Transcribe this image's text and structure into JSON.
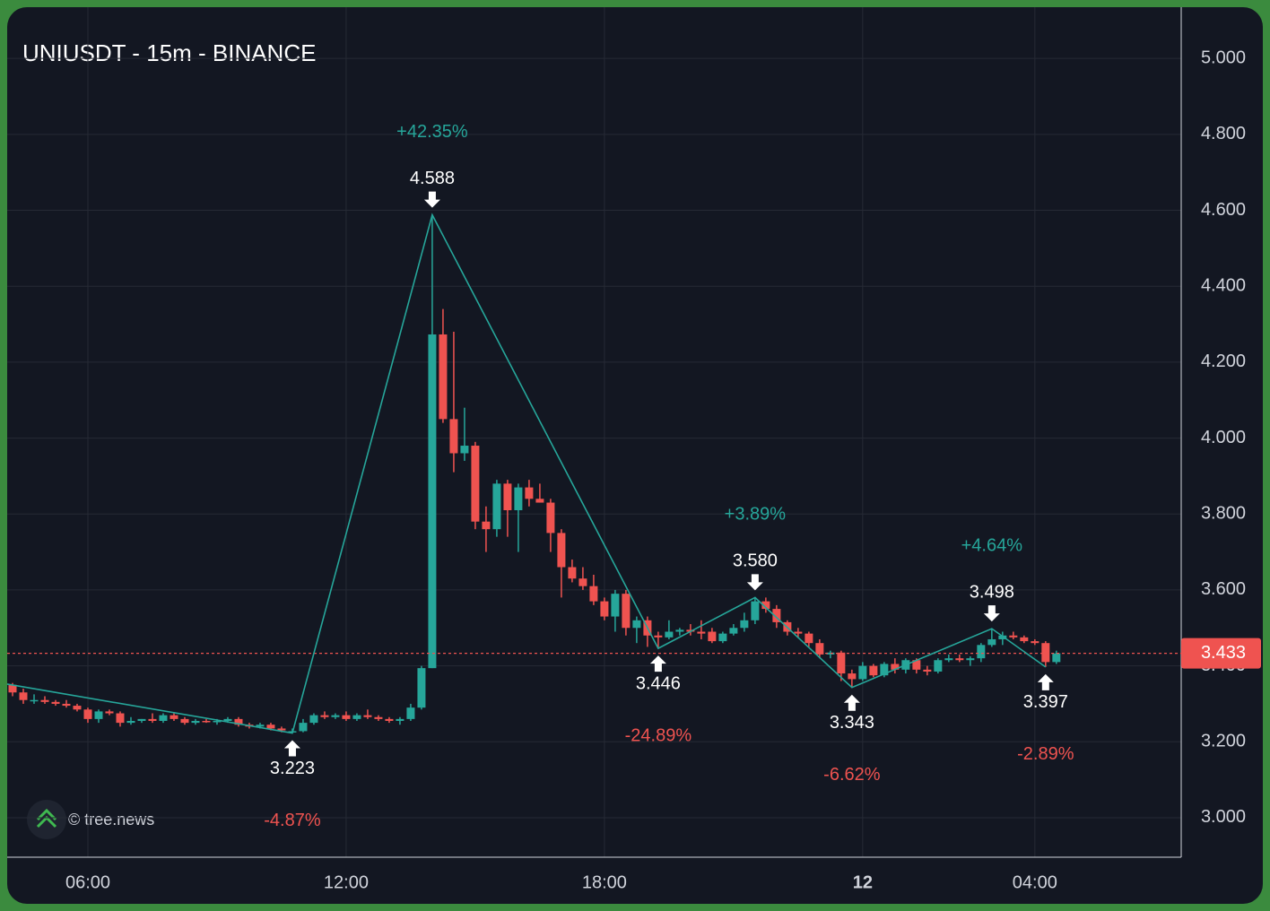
{
  "chart_data": {
    "type": "candlestick",
    "title": "UNIUSDT - 15m - BINANCE",
    "watermark": "© tree.news",
    "up_color": "#26a69a",
    "down_color": "#ef5350",
    "line_color": "#26a69a",
    "grid": true,
    "xlim": [
      4.125,
      31.4
    ],
    "ylim": [
      2.896,
      5.135
    ],
    "xticks": [
      {
        "value": 6,
        "label": "06:00"
      },
      {
        "value": 12,
        "label": "12:00"
      },
      {
        "value": 18,
        "label": "18:00"
      },
      {
        "value": 24,
        "label": "12"
      },
      {
        "value": 28,
        "label": "04:00"
      }
    ],
    "yticks": [
      {
        "value": 3.0,
        "label": "3.000"
      },
      {
        "value": 3.2,
        "label": "3.200"
      },
      {
        "value": 3.4,
        "label": "3.400"
      },
      {
        "value": 3.6,
        "label": "3.600"
      },
      {
        "value": 3.8,
        "label": "3.800"
      },
      {
        "value": 4.0,
        "label": "4.000"
      },
      {
        "value": 4.2,
        "label": "4.200"
      },
      {
        "value": 4.4,
        "label": "4.400"
      },
      {
        "value": 4.6,
        "label": "4.600"
      },
      {
        "value": 4.8,
        "label": "4.800"
      },
      {
        "value": 5.0,
        "label": "5.000"
      }
    ],
    "last_price": 3.433,
    "candles": [
      [
        4.25,
        3.35,
        3.355,
        3.32,
        3.33
      ],
      [
        4.5,
        3.33,
        3.34,
        3.3,
        3.31
      ],
      [
        4.75,
        3.31,
        3.325,
        3.3,
        3.31
      ],
      [
        5.0,
        3.31,
        3.32,
        3.3,
        3.305
      ],
      [
        5.25,
        3.305,
        3.31,
        3.295,
        3.3
      ],
      [
        5.5,
        3.3,
        3.31,
        3.29,
        3.295
      ],
      [
        5.75,
        3.295,
        3.3,
        3.28,
        3.285
      ],
      [
        6.0,
        3.285,
        3.29,
        3.25,
        3.26
      ],
      [
        6.25,
        3.26,
        3.285,
        3.25,
        3.28
      ],
      [
        6.5,
        3.28,
        3.285,
        3.27,
        3.275
      ],
      [
        6.75,
        3.275,
        3.28,
        3.24,
        3.25
      ],
      [
        7.0,
        3.25,
        3.265,
        3.245,
        3.255
      ],
      [
        7.25,
        3.255,
        3.26,
        3.25,
        3.26
      ],
      [
        7.5,
        3.26,
        3.275,
        3.25,
        3.255
      ],
      [
        7.75,
        3.255,
        3.275,
        3.25,
        3.27
      ],
      [
        8.0,
        3.27,
        3.275,
        3.255,
        3.26
      ],
      [
        8.25,
        3.26,
        3.265,
        3.245,
        3.25
      ],
      [
        8.5,
        3.25,
        3.26,
        3.245,
        3.255
      ],
      [
        8.75,
        3.255,
        3.26,
        3.25,
        3.252
      ],
      [
        9.0,
        3.252,
        3.26,
        3.245,
        3.255
      ],
      [
        9.25,
        3.255,
        3.265,
        3.25,
        3.26
      ],
      [
        9.5,
        3.26,
        3.265,
        3.24,
        3.245
      ],
      [
        9.75,
        3.245,
        3.25,
        3.235,
        3.24
      ],
      [
        10.0,
        3.24,
        3.25,
        3.235,
        3.245
      ],
      [
        10.25,
        3.245,
        3.25,
        3.23,
        3.235
      ],
      [
        10.5,
        3.235,
        3.24,
        3.225,
        3.23
      ],
      [
        10.75,
        3.225,
        3.235,
        3.223,
        3.228
      ],
      [
        11.0,
        3.228,
        3.26,
        3.225,
        3.25
      ],
      [
        11.25,
        3.25,
        3.275,
        3.245,
        3.27
      ],
      [
        11.5,
        3.27,
        3.28,
        3.26,
        3.265
      ],
      [
        11.75,
        3.265,
        3.275,
        3.26,
        3.27
      ],
      [
        12.0,
        3.27,
        3.28,
        3.255,
        3.26
      ],
      [
        12.25,
        3.26,
        3.275,
        3.255,
        3.27
      ],
      [
        12.5,
        3.27,
        3.285,
        3.26,
        3.265
      ],
      [
        12.75,
        3.265,
        3.27,
        3.255,
        3.26
      ],
      [
        13.0,
        3.26,
        3.265,
        3.25,
        3.255
      ],
      [
        13.25,
        3.255,
        3.265,
        3.245,
        3.26
      ],
      [
        13.5,
        3.26,
        3.3,
        3.255,
        3.29
      ],
      [
        13.75,
        3.29,
        3.4,
        3.285,
        3.394
      ],
      [
        14.0,
        3.394,
        4.588,
        3.394,
        4.273
      ],
      [
        14.25,
        4.273,
        4.34,
        4.04,
        4.05
      ],
      [
        14.5,
        4.05,
        4.28,
        3.91,
        3.96
      ],
      [
        14.75,
        3.96,
        4.08,
        3.94,
        3.98
      ],
      [
        15.0,
        3.98,
        3.99,
        3.76,
        3.78
      ],
      [
        15.25,
        3.78,
        3.82,
        3.7,
        3.76
      ],
      [
        15.5,
        3.76,
        3.89,
        3.74,
        3.88
      ],
      [
        15.75,
        3.88,
        3.89,
        3.74,
        3.81
      ],
      [
        16.0,
        3.81,
        3.88,
        3.7,
        3.87
      ],
      [
        16.25,
        3.87,
        3.89,
        3.82,
        3.84
      ],
      [
        16.5,
        3.84,
        3.88,
        3.83,
        3.83
      ],
      [
        16.75,
        3.83,
        3.84,
        3.7,
        3.75
      ],
      [
        17.0,
        3.75,
        3.76,
        3.58,
        3.66
      ],
      [
        17.25,
        3.66,
        3.68,
        3.62,
        3.63
      ],
      [
        17.5,
        3.63,
        3.66,
        3.6,
        3.61
      ],
      [
        17.75,
        3.61,
        3.64,
        3.56,
        3.57
      ],
      [
        18.0,
        3.57,
        3.58,
        3.52,
        3.53
      ],
      [
        18.25,
        3.53,
        3.6,
        3.49,
        3.59
      ],
      [
        18.5,
        3.59,
        3.6,
        3.48,
        3.5
      ],
      [
        18.75,
        3.5,
        3.53,
        3.46,
        3.52
      ],
      [
        19.0,
        3.52,
        3.53,
        3.45,
        3.48
      ],
      [
        19.25,
        3.48,
        3.49,
        3.446,
        3.475
      ],
      [
        19.5,
        3.475,
        3.52,
        3.47,
        3.49
      ],
      [
        19.75,
        3.49,
        3.5,
        3.48,
        3.495
      ],
      [
        20.0,
        3.495,
        3.51,
        3.48,
        3.49
      ],
      [
        20.25,
        3.49,
        3.52,
        3.47,
        3.485
      ],
      [
        20.5,
        3.49,
        3.5,
        3.46,
        3.465
      ],
      [
        20.75,
        3.465,
        3.49,
        3.46,
        3.485
      ],
      [
        21.0,
        3.485,
        3.51,
        3.48,
        3.5
      ],
      [
        21.25,
        3.5,
        3.54,
        3.49,
        3.52
      ],
      [
        21.5,
        3.52,
        3.58,
        3.51,
        3.57
      ],
      [
        21.75,
        3.57,
        3.58,
        3.54,
        3.55
      ],
      [
        22.0,
        3.55,
        3.56,
        3.5,
        3.515
      ],
      [
        22.25,
        3.515,
        3.52,
        3.48,
        3.49
      ],
      [
        22.5,
        3.49,
        3.5,
        3.475,
        3.485
      ],
      [
        22.75,
        3.485,
        3.49,
        3.45,
        3.46
      ],
      [
        23.0,
        3.46,
        3.47,
        3.42,
        3.43
      ],
      [
        23.25,
        3.43,
        3.44,
        3.42,
        3.435
      ],
      [
        23.5,
        3.435,
        3.44,
        3.36,
        3.38
      ],
      [
        23.75,
        3.38,
        3.39,
        3.343,
        3.365
      ],
      [
        24.0,
        3.365,
        3.41,
        3.36,
        3.4
      ],
      [
        24.25,
        3.4,
        3.405,
        3.37,
        3.375
      ],
      [
        24.5,
        3.375,
        3.41,
        3.37,
        3.405
      ],
      [
        24.75,
        3.405,
        3.42,
        3.38,
        3.39
      ],
      [
        25.0,
        3.39,
        3.42,
        3.38,
        3.415
      ],
      [
        25.25,
        3.415,
        3.42,
        3.38,
        3.39
      ],
      [
        25.5,
        3.39,
        3.4,
        3.375,
        3.385
      ],
      [
        25.75,
        3.385,
        3.42,
        3.38,
        3.415
      ],
      [
        26.0,
        3.415,
        3.43,
        3.41,
        3.42
      ],
      [
        26.25,
        3.42,
        3.43,
        3.41,
        3.415
      ],
      [
        26.5,
        3.415,
        3.425,
        3.4,
        3.42
      ],
      [
        26.75,
        3.42,
        3.46,
        3.41,
        3.455
      ],
      [
        27.0,
        3.455,
        3.498,
        3.45,
        3.47
      ],
      [
        27.25,
        3.47,
        3.49,
        3.455,
        3.48
      ],
      [
        27.5,
        3.48,
        3.49,
        3.47,
        3.475
      ],
      [
        27.75,
        3.475,
        3.48,
        3.46,
        3.465
      ],
      [
        28.0,
        3.465,
        3.47,
        3.455,
        3.46
      ],
      [
        28.25,
        3.46,
        3.465,
        3.397,
        3.41
      ],
      [
        28.5,
        3.41,
        3.44,
        3.405,
        3.433
      ]
    ],
    "zigzag": {
      "x": [
        4.125,
        10.75,
        14.0,
        19.25,
        21.5,
        23.75,
        27.0,
        28.25
      ],
      "values": [
        3.352,
        3.223,
        4.588,
        3.446,
        3.58,
        3.343,
        3.498,
        3.397
      ]
    },
    "pivots": [
      {
        "x": 10.75,
        "value": 3.223,
        "label": "3.223",
        "side": "low",
        "change": {
          "value": -4.87,
          "label": "-4.87%"
        }
      },
      {
        "x": 14.0,
        "value": 4.588,
        "label": "4.588",
        "side": "high",
        "change": {
          "value": 42.35,
          "label": "+42.35%"
        }
      },
      {
        "x": 19.25,
        "value": 3.446,
        "label": "3.446",
        "side": "low",
        "change": {
          "value": -24.89,
          "label": "-24.89%"
        }
      },
      {
        "x": 21.5,
        "value": 3.58,
        "label": "3.580",
        "side": "high",
        "change": {
          "value": 3.89,
          "label": "+3.89%"
        }
      },
      {
        "x": 23.75,
        "value": 3.343,
        "label": "3.343",
        "side": "low",
        "change": {
          "value": -6.62,
          "label": "-6.62%"
        }
      },
      {
        "x": 27.0,
        "value": 3.498,
        "label": "3.498",
        "side": "high",
        "change": {
          "value": 4.64,
          "label": "+4.64%"
        }
      },
      {
        "x": 28.25,
        "value": 3.397,
        "label": "3.397",
        "side": "low",
        "change": {
          "value": -2.89,
          "label": "-2.89%"
        }
      }
    ]
  }
}
